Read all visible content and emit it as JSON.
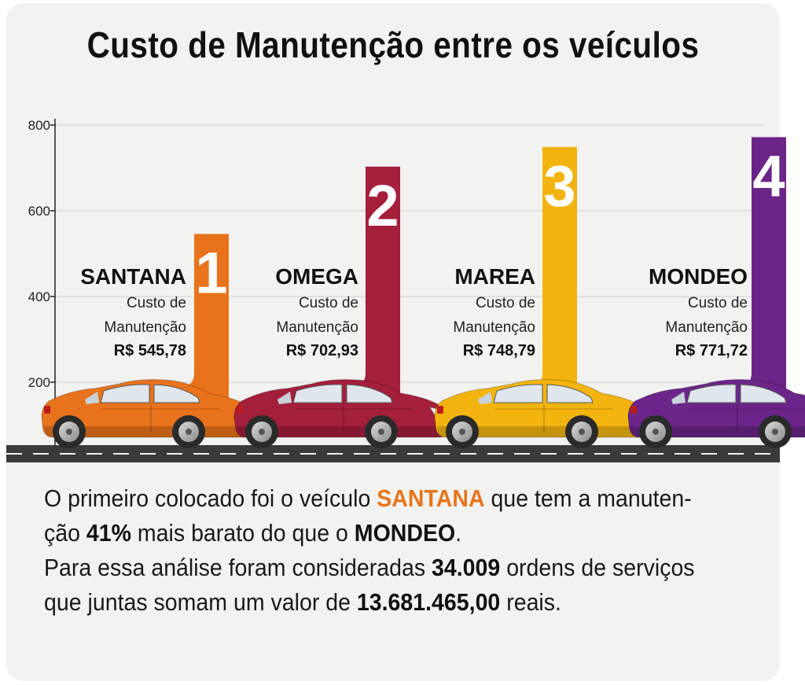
{
  "chart_data": {
    "type": "bar",
    "title": "Custo de Manutenção entre os veículos",
    "categories": [
      "SANTANA",
      "OMEGA",
      "MAREA",
      "MONDEO"
    ],
    "ranks": [
      "1",
      "2",
      "3",
      "4"
    ],
    "values": [
      545.78,
      702.93,
      748.79,
      771.72
    ],
    "value_labels": [
      "R$ 545,78",
      "R$ 702,93",
      "R$ 748,79",
      "R$ 771,72"
    ],
    "sub_label_line1": "Custo de",
    "sub_label_line2": "Manutenção",
    "ylim": [
      0,
      800
    ],
    "yticks": [
      "200",
      "400",
      "600",
      "800"
    ],
    "ytick_values": [
      200,
      400,
      600,
      800
    ],
    "grid": true,
    "xlabel": "",
    "ylabel": "",
    "colors": [
      "#e8731c",
      "#a41f3c",
      "#f3b40f",
      "#6b2589"
    ]
  },
  "footer": {
    "p1_a": "O primeiro colocado foi o veículo ",
    "p1_b": "SANTANA",
    "p1_c": " que tem a manuten-",
    "p1_d": "ção ",
    "p1_e": "41%",
    "p1_f": " mais barato do que o ",
    "p1_g": "MONDEO",
    "p1_h": ".",
    "p2_a": "Para essa análise foram consideradas ",
    "p2_b": "34.009",
    "p2_c": " ordens de serviços",
    "p2_d": "que juntas somam um valor de ",
    "p2_e": "13.681.465,00",
    "p2_f": " reais."
  }
}
